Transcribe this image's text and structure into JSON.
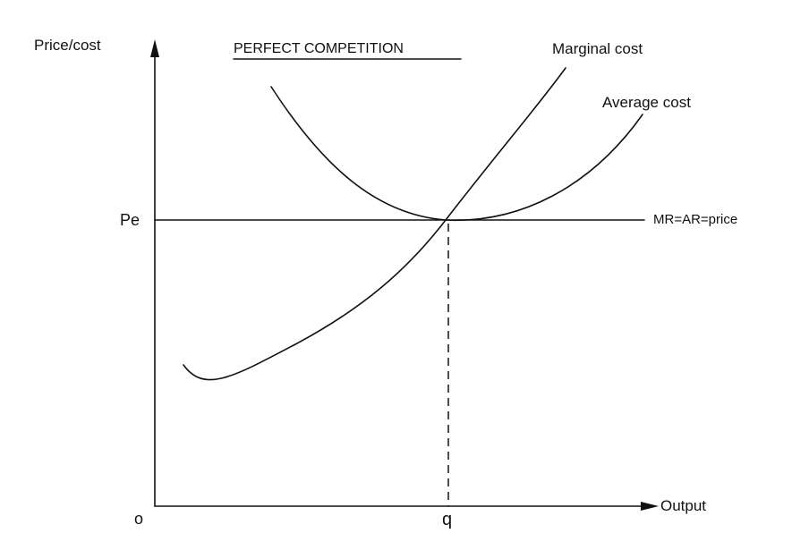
{
  "diagram": {
    "title": "PERFECT COMPETITION",
    "y_axis_label": "Price/cost",
    "x_axis_label": "Output",
    "origin_label": "o",
    "price_label": "Pe",
    "quantity_label": "q",
    "price_line_label": "MR=AR=price",
    "mc_label": "Marginal cost",
    "ac_label": "Average cost",
    "colors": {
      "ink": "#111111",
      "background": "#ffffff"
    }
  }
}
